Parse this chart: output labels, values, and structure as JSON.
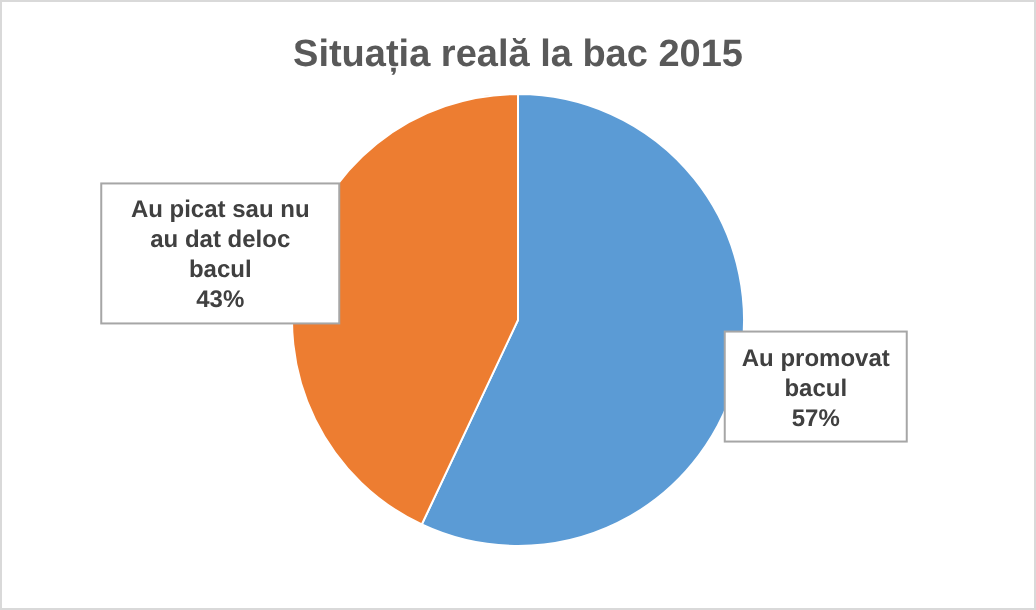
{
  "chart_data": {
    "type": "pie",
    "title": "Situația reală la bac 2015",
    "categories": [
      "Au promovat bacul",
      "Au picat sau nu au dat deloc bacul"
    ],
    "values": [
      57,
      43
    ],
    "colors": [
      "#5b9bd5",
      "#ed7d31"
    ],
    "value_labels": [
      "57%",
      "43%"
    ]
  }
}
